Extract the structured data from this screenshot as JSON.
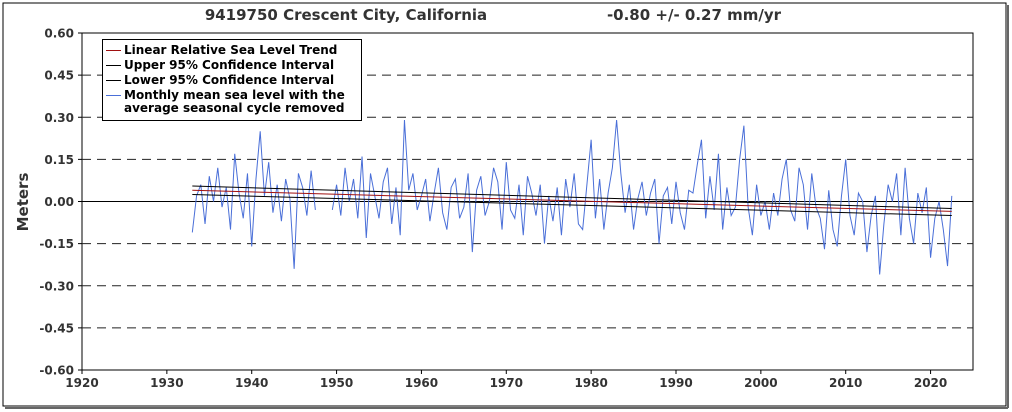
{
  "chart_data": {
    "type": "line",
    "title": "9419750 Crescent City, California",
    "subtitle": "-0.80 +/-  0.27 mm/yr",
    "ylabel": "Meters",
    "xlim": [
      1920,
      2025
    ],
    "ylim": [
      -0.6,
      0.6
    ],
    "xticks": [
      1920,
      1930,
      1940,
      1950,
      1960,
      1970,
      1980,
      1990,
      2000,
      2010,
      2020
    ],
    "yticks": [
      {
        "value": -0.6,
        "label": "-0.60"
      },
      {
        "value": -0.45,
        "label": "-0.45"
      },
      {
        "value": -0.3,
        "label": "-0.30"
      },
      {
        "value": -0.15,
        "label": "-0.15"
      },
      {
        "value": 0,
        "label": "0.00"
      },
      {
        "value": 0.15,
        "label": "0.15"
      },
      {
        "value": 0.3,
        "label": "0.30"
      },
      {
        "value": 0.45,
        "label": "0.45"
      },
      {
        "value": 0.6,
        "label": "0.60"
      }
    ],
    "grid": true,
    "legend": "upper left",
    "series": [
      {
        "name": "Linear Relative Sea Level Trend",
        "color": "#a01010",
        "x": [
          1933,
          2022.5
        ],
        "values": [
          0.04,
          -0.035
        ]
      },
      {
        "name": "Upper 95% Confidence Interval",
        "color": "#000000",
        "x": [
          1933,
          2022.5
        ],
        "values": [
          0.055,
          -0.025
        ]
      },
      {
        "name": "Lower 95% Confidence Interval",
        "color": "#000000",
        "x": [
          1933,
          2022.5
        ],
        "values": [
          0.025,
          -0.05
        ]
      },
      {
        "name": "Monthly mean sea level with the average seasonal cycle removed",
        "color": "#4a6fd8",
        "x": [
          1933,
          1933.5,
          1934,
          1934.5,
          1935,
          1935.5,
          1936,
          1936.5,
          1937,
          1937.5,
          1938,
          1938.5,
          1939,
          1939.5,
          1940,
          1940.5,
          1941,
          1941.5,
          1942,
          1942.5,
          1943,
          1943.5,
          1944,
          1944.5,
          1945,
          1945.5,
          1946,
          1946.5,
          1947,
          1947.5,
          1948,
          1948.5,
          1949,
          1949.5,
          1950,
          1950.5,
          1951,
          1951.5,
          1952,
          1952.5,
          1953,
          1953.5,
          1954,
          1954.5,
          1955,
          1955.5,
          1956,
          1956.5,
          1957,
          1957.5,
          1958,
          1958.5,
          1959,
          1959.5,
          1960,
          1960.5,
          1961,
          1961.5,
          1962,
          1962.5,
          1963,
          1963.5,
          1964,
          1964.5,
          1965,
          1965.5,
          1966,
          1966.5,
          1967,
          1967.5,
          1968,
          1968.5,
          1969,
          1969.5,
          1970,
          1970.5,
          1971,
          1971.5,
          1972,
          1972.5,
          1973,
          1973.5,
          1974,
          1974.5,
          1975,
          1975.5,
          1976,
          1976.5,
          1977,
          1977.5,
          1978,
          1978.5,
          1979,
          1979.5,
          1980,
          1980.5,
          1981,
          1981.5,
          1982,
          1982.5,
          1983,
          1983.5,
          1984,
          1984.5,
          1985,
          1985.5,
          1986,
          1986.5,
          1987,
          1987.5,
          1988,
          1988.5,
          1989,
          1989.5,
          1990,
          1990.5,
          1991,
          1991.5,
          1992,
          1992.5,
          1993,
          1993.5,
          1994,
          1994.5,
          1995,
          1995.5,
          1996,
          1996.5,
          1997,
          1997.5,
          1998,
          1998.5,
          1999,
          1999.5,
          2000,
          2000.5,
          2001,
          2001.5,
          2002,
          2002.5,
          2003,
          2003.5,
          2004,
          2004.5,
          2005,
          2005.5,
          2006,
          2006.5,
          2007,
          2007.5,
          2008,
          2008.5,
          2009,
          2009.5,
          2010,
          2010.5,
          2011,
          2011.5,
          2012,
          2012.5,
          2013,
          2013.5,
          2014,
          2014.5,
          2015,
          2015.5,
          2016,
          2016.5,
          2017,
          2017.5,
          2018,
          2018.5,
          2019,
          2019.5,
          2020,
          2020.5,
          2021,
          2021.5,
          2022,
          2022.5
        ],
        "values": [
          -0.11,
          0.02,
          0.06,
          -0.08,
          0.09,
          0.0,
          0.12,
          -0.02,
          0.05,
          -0.1,
          0.17,
          0.03,
          -0.06,
          0.1,
          -0.16,
          0.08,
          0.25,
          0.02,
          0.14,
          -0.04,
          0.06,
          -0.07,
          0.08,
          0.01,
          -0.24,
          0.1,
          0.05,
          -0.05,
          0.11,
          -0.03,
          null,
          null,
          null,
          -0.03,
          0.06,
          -0.05,
          0.12,
          0.0,
          0.08,
          -0.06,
          0.16,
          -0.13,
          0.1,
          0.02,
          -0.06,
          0.07,
          0.12,
          -0.08,
          0.05,
          -0.12,
          0.29,
          0.04,
          0.1,
          -0.03,
          0.02,
          0.08,
          -0.07,
          0.03,
          0.12,
          -0.04,
          -0.1,
          0.05,
          0.08,
          -0.06,
          -0.02,
          0.1,
          -0.18,
          0.04,
          0.09,
          -0.05,
          0.0,
          0.12,
          0.07,
          -0.1,
          0.14,
          -0.03,
          -0.06,
          0.06,
          -0.12,
          0.09,
          0.03,
          -0.05,
          0.06,
          -0.15,
          0.02,
          -0.07,
          0.05,
          -0.12,
          0.08,
          -0.02,
          0.1,
          -0.08,
          -0.1,
          0.06,
          0.22,
          -0.06,
          0.08,
          -0.1,
          0.03,
          0.12,
          0.29,
          0.1,
          -0.04,
          0.06,
          -0.1,
          0.01,
          0.07,
          -0.05,
          0.03,
          0.08,
          -0.15,
          0.02,
          0.05,
          -0.08,
          0.07,
          -0.04,
          -0.1,
          0.04,
          0.03,
          0.13,
          0.22,
          -0.06,
          0.09,
          -0.03,
          0.17,
          -0.1,
          0.05,
          -0.05,
          -0.02,
          0.15,
          0.27,
          -0.02,
          -0.12,
          0.06,
          -0.05,
          0.0,
          -0.1,
          0.03,
          -0.05,
          0.08,
          0.15,
          -0.03,
          -0.07,
          0.12,
          0.06,
          -0.1,
          0.1,
          -0.02,
          -0.06,
          -0.17,
          0.04,
          -0.1,
          -0.16,
          0.02,
          0.15,
          -0.05,
          -0.12,
          0.03,
          0.0,
          -0.18,
          -0.05,
          0.02,
          -0.26,
          -0.08,
          0.06,
          0.0,
          0.1,
          -0.12,
          0.12,
          -0.06,
          -0.15,
          0.03,
          -0.04,
          0.05,
          -0.2,
          -0.06,
          0.0,
          -0.1,
          -0.23,
          0.02
        ]
      }
    ]
  }
}
